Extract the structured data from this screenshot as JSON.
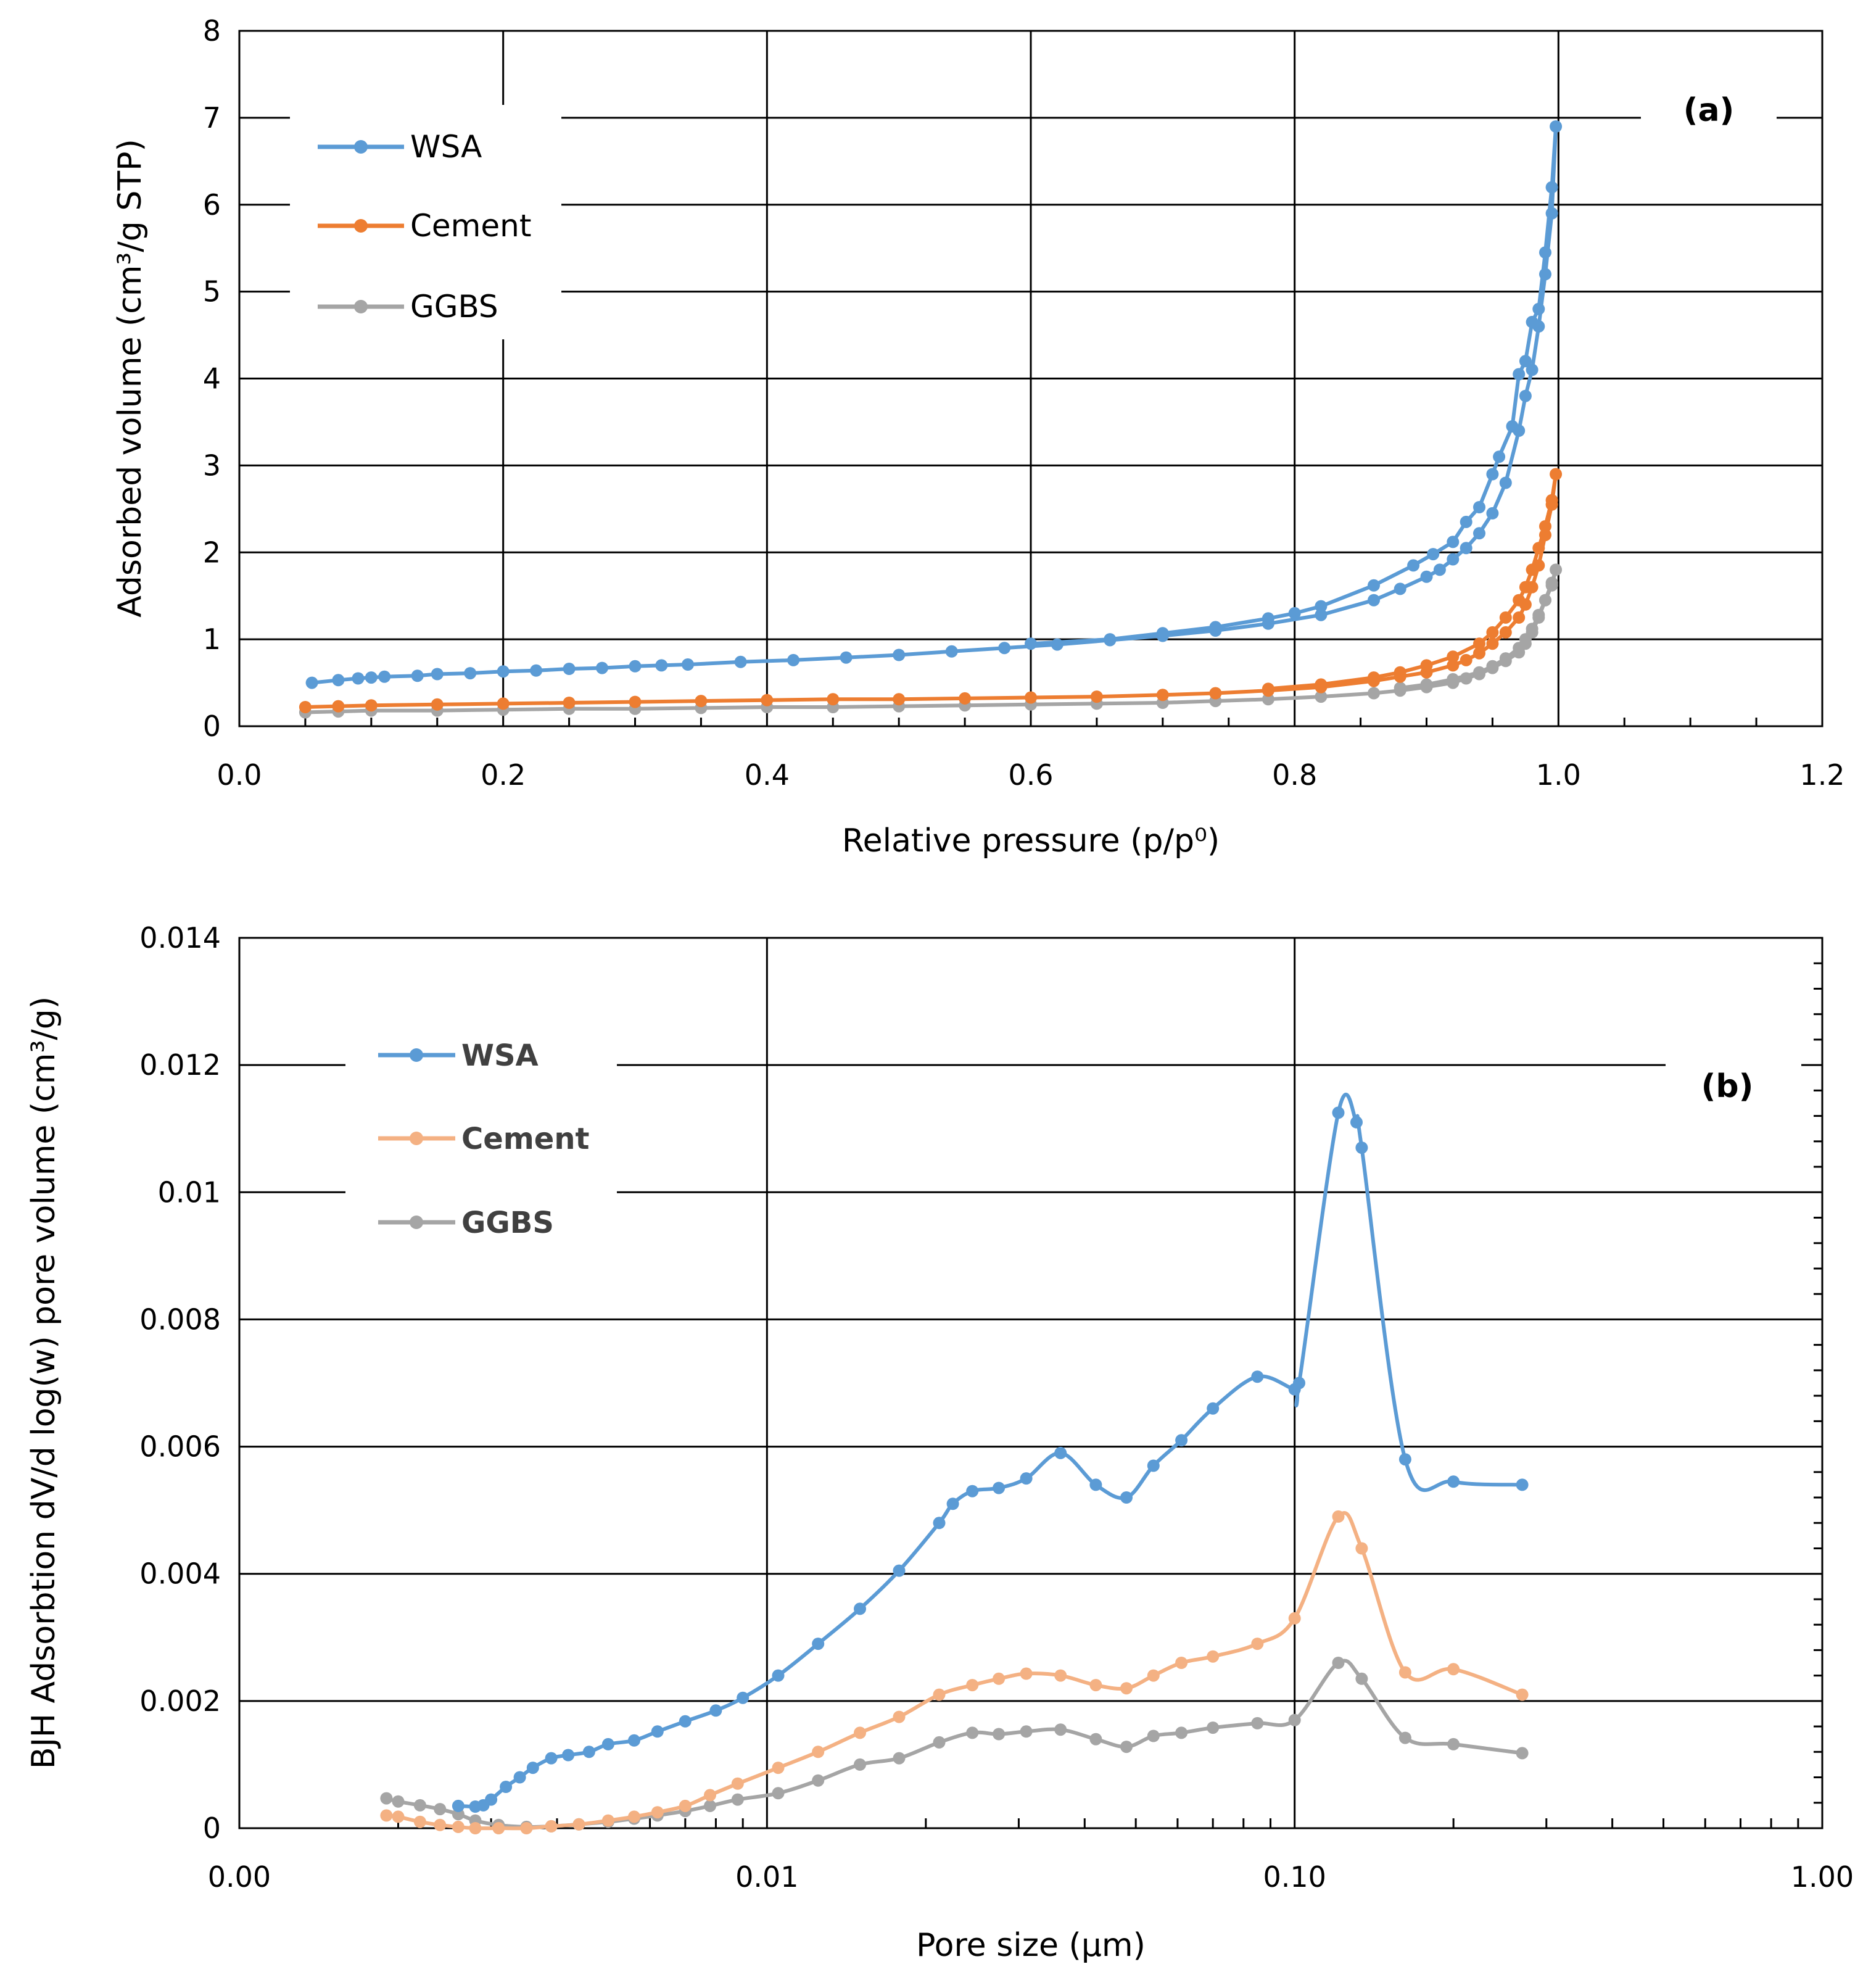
{
  "chart_data": [
    {
      "type": "line",
      "panel_label": "(a)",
      "xlabel": "Relative pressure (p/p⁰)",
      "ylabel": "Adsorbed volume (cm³/g STP)",
      "xlim": [
        0,
        1.2
      ],
      "ylim": [
        0,
        8
      ],
      "xticks": [
        "0.0",
        "0.2",
        "0.4",
        "0.6",
        "0.8",
        "1.0",
        "1.2"
      ],
      "yticks": [
        "0",
        "1",
        "2",
        "3",
        "4",
        "5",
        "6",
        "7",
        "8"
      ],
      "grid": true,
      "legend": "top-left",
      "series": [
        {
          "name": "WSA",
          "color": "#5B9BD5",
          "x": [
            0.055,
            0.075,
            0.09,
            0.1,
            0.11,
            0.135,
            0.15,
            0.175,
            0.2,
            0.225,
            0.25,
            0.275,
            0.3,
            0.32,
            0.34,
            0.38,
            0.42,
            0.46,
            0.5,
            0.54,
            0.58,
            0.62,
            0.66,
            0.7,
            0.74,
            0.78,
            0.82,
            0.86,
            0.88,
            0.9,
            0.91,
            0.92,
            0.93,
            0.94,
            0.95,
            0.96,
            0.97,
            0.975,
            0.98,
            0.985,
            0.99,
            0.995,
            0.998,
            0.995,
            0.99,
            0.985,
            0.98,
            0.975,
            0.97,
            0.965,
            0.955,
            0.95,
            0.94,
            0.93,
            0.92,
            0.905,
            0.89,
            0.86,
            0.82,
            0.8,
            0.78,
            0.74,
            0.7,
            0.66,
            0.6
          ],
          "y": [
            0.5,
            0.53,
            0.55,
            0.56,
            0.57,
            0.58,
            0.6,
            0.61,
            0.63,
            0.64,
            0.66,
            0.67,
            0.69,
            0.7,
            0.71,
            0.74,
            0.76,
            0.79,
            0.82,
            0.86,
            0.9,
            0.94,
            0.99,
            1.04,
            1.1,
            1.18,
            1.28,
            1.45,
            1.58,
            1.72,
            1.8,
            1.92,
            2.05,
            2.22,
            2.45,
            2.8,
            3.4,
            3.8,
            4.1,
            4.6,
            5.2,
            5.9,
            6.9,
            6.2,
            5.45,
            4.8,
            4.65,
            4.2,
            4.05,
            3.45,
            3.1,
            2.9,
            2.52,
            2.35,
            2.12,
            1.98,
            1.85,
            1.62,
            1.38,
            1.3,
            1.24,
            1.14,
            1.07,
            1.0,
            0.95
          ]
        },
        {
          "name": "Cement",
          "color": "#ED7D31",
          "x": [
            0.05,
            0.075,
            0.1,
            0.15,
            0.2,
            0.25,
            0.3,
            0.35,
            0.4,
            0.45,
            0.5,
            0.55,
            0.6,
            0.65,
            0.7,
            0.74,
            0.78,
            0.82,
            0.86,
            0.88,
            0.9,
            0.92,
            0.93,
            0.94,
            0.95,
            0.96,
            0.97,
            0.975,
            0.98,
            0.985,
            0.99,
            0.995,
            0.998,
            0.995,
            0.99,
            0.985,
            0.98,
            0.975,
            0.97,
            0.96,
            0.95,
            0.94,
            0.92,
            0.9,
            0.88,
            0.86,
            0.82,
            0.78
          ],
          "y": [
            0.22,
            0.23,
            0.24,
            0.25,
            0.26,
            0.27,
            0.28,
            0.29,
            0.3,
            0.31,
            0.31,
            0.32,
            0.33,
            0.34,
            0.36,
            0.38,
            0.41,
            0.45,
            0.52,
            0.57,
            0.62,
            0.7,
            0.76,
            0.84,
            0.95,
            1.08,
            1.25,
            1.4,
            1.6,
            1.85,
            2.2,
            2.55,
            2.9,
            2.6,
            2.3,
            2.05,
            1.8,
            1.6,
            1.45,
            1.25,
            1.08,
            0.95,
            0.8,
            0.7,
            0.62,
            0.56,
            0.48,
            0.43
          ]
        },
        {
          "name": "GGBS",
          "color": "#A5A5A5",
          "x": [
            0.05,
            0.075,
            0.1,
            0.15,
            0.2,
            0.25,
            0.3,
            0.35,
            0.4,
            0.45,
            0.5,
            0.55,
            0.6,
            0.65,
            0.7,
            0.74,
            0.78,
            0.82,
            0.86,
            0.88,
            0.9,
            0.92,
            0.93,
            0.94,
            0.95,
            0.96,
            0.97,
            0.975,
            0.98,
            0.985,
            0.99,
            0.995,
            0.998,
            0.995,
            0.99,
            0.985,
            0.98,
            0.975,
            0.97,
            0.96,
            0.95,
            0.94,
            0.92,
            0.9,
            0.88
          ],
          "y": [
            0.16,
            0.17,
            0.18,
            0.18,
            0.19,
            0.2,
            0.2,
            0.21,
            0.22,
            0.22,
            0.23,
            0.24,
            0.25,
            0.26,
            0.27,
            0.29,
            0.31,
            0.34,
            0.38,
            0.41,
            0.45,
            0.5,
            0.55,
            0.6,
            0.67,
            0.75,
            0.85,
            0.95,
            1.08,
            1.25,
            1.45,
            1.62,
            1.8,
            1.65,
            1.45,
            1.28,
            1.12,
            1.0,
            0.9,
            0.78,
            0.69,
            0.62,
            0.54,
            0.48,
            0.44
          ]
        }
      ]
    },
    {
      "type": "line",
      "panel_label": "(b)",
      "xlabel": "Pore size (µm)",
      "ylabel": "BJH Adsorbtion dV/d log(w) pore volume (cm³/g)",
      "xscale": "log",
      "xlim": [
        0.001,
        1.0
      ],
      "ylim": [
        0,
        0.014
      ],
      "xticks": [
        "0.00",
        "0.01",
        "0.10",
        "1.00"
      ],
      "yticks": [
        "0",
        "0.002",
        "0.004",
        "0.006",
        "0.008",
        "0.01",
        "0.012",
        "0.014"
      ],
      "grid": true,
      "legend": "top-left",
      "series": [
        {
          "name": "WSA",
          "color": "#5B9BD5",
          "x": [
            0.0026,
            0.0028,
            0.0029,
            0.003,
            0.0032,
            0.0034,
            0.0036,
            0.0039,
            0.0042,
            0.0046,
            0.005,
            0.0056,
            0.0062,
            0.007,
            0.008,
            0.009,
            0.0105,
            0.0125,
            0.015,
            0.0178,
            0.0212,
            0.0225,
            0.0245,
            0.0275,
            0.031,
            0.036,
            0.042,
            0.048,
            0.054,
            0.061,
            0.07,
            0.085,
            0.1,
            0.102,
            0.121,
            0.131,
            0.134,
            0.162,
            0.2,
            0.27
          ],
          "y": [
            0.00035,
            0.00034,
            0.00036,
            0.00045,
            0.00065,
            0.0008,
            0.00095,
            0.0011,
            0.00115,
            0.0012,
            0.00132,
            0.00138,
            0.00152,
            0.00168,
            0.00185,
            0.00205,
            0.0024,
            0.0029,
            0.00345,
            0.00405,
            0.0048,
            0.0051,
            0.0053,
            0.00535,
            0.0055,
            0.0059,
            0.0054,
            0.0052,
            0.0057,
            0.0061,
            0.0066,
            0.0071,
            0.0069,
            0.007,
            0.01125,
            0.0111,
            0.0107,
            0.0058,
            0.00545,
            0.0054
          ]
        },
        {
          "name": "Cement",
          "color": "#F4B183",
          "x": [
            0.0019,
            0.002,
            0.0022,
            0.0024,
            0.0026,
            0.0028,
            0.0031,
            0.0035,
            0.0039,
            0.0044,
            0.005,
            0.0056,
            0.0062,
            0.007,
            0.0078,
            0.0088,
            0.0105,
            0.0125,
            0.015,
            0.0178,
            0.0212,
            0.0245,
            0.0275,
            0.031,
            0.036,
            0.042,
            0.048,
            0.054,
            0.061,
            0.07,
            0.085,
            0.1,
            0.121,
            0.134,
            0.162,
            0.2,
            0.27
          ],
          "y": [
            0.0002,
            0.00018,
            0.0001,
            5e-05,
            2e-05,
            0.0,
            0.0,
            0.0,
            3e-05,
            6e-05,
            0.00012,
            0.00018,
            0.00025,
            0.00035,
            0.00052,
            0.0007,
            0.00095,
            0.0012,
            0.0015,
            0.00175,
            0.0021,
            0.00225,
            0.00235,
            0.00243,
            0.0024,
            0.00225,
            0.0022,
            0.0024,
            0.0026,
            0.0027,
            0.0029,
            0.0033,
            0.0049,
            0.0044,
            0.00245,
            0.0025,
            0.0021
          ]
        },
        {
          "name": "GGBS",
          "color": "#A5A5A5",
          "x": [
            0.0019,
            0.002,
            0.0022,
            0.0024,
            0.0026,
            0.0028,
            0.0031,
            0.0035,
            0.0039,
            0.0044,
            0.005,
            0.0056,
            0.0062,
            0.007,
            0.0078,
            0.0088,
            0.0105,
            0.0125,
            0.015,
            0.0178,
            0.0212,
            0.0245,
            0.0275,
            0.031,
            0.036,
            0.042,
            0.048,
            0.054,
            0.061,
            0.07,
            0.085,
            0.1,
            0.121,
            0.134,
            0.162,
            0.2,
            0.27
          ],
          "y": [
            0.00047,
            0.00042,
            0.00036,
            0.0003,
            0.00022,
            0.00012,
            5e-05,
            2e-05,
            3e-05,
            6e-05,
            0.0001,
            0.00015,
            0.0002,
            0.00027,
            0.00035,
            0.00045,
            0.00055,
            0.00075,
            0.001,
            0.0011,
            0.00135,
            0.0015,
            0.00148,
            0.00152,
            0.00155,
            0.0014,
            0.00128,
            0.00145,
            0.0015,
            0.00158,
            0.00165,
            0.0017,
            0.0026,
            0.00235,
            0.00142,
            0.00132,
            0.00118
          ]
        }
      ]
    }
  ]
}
